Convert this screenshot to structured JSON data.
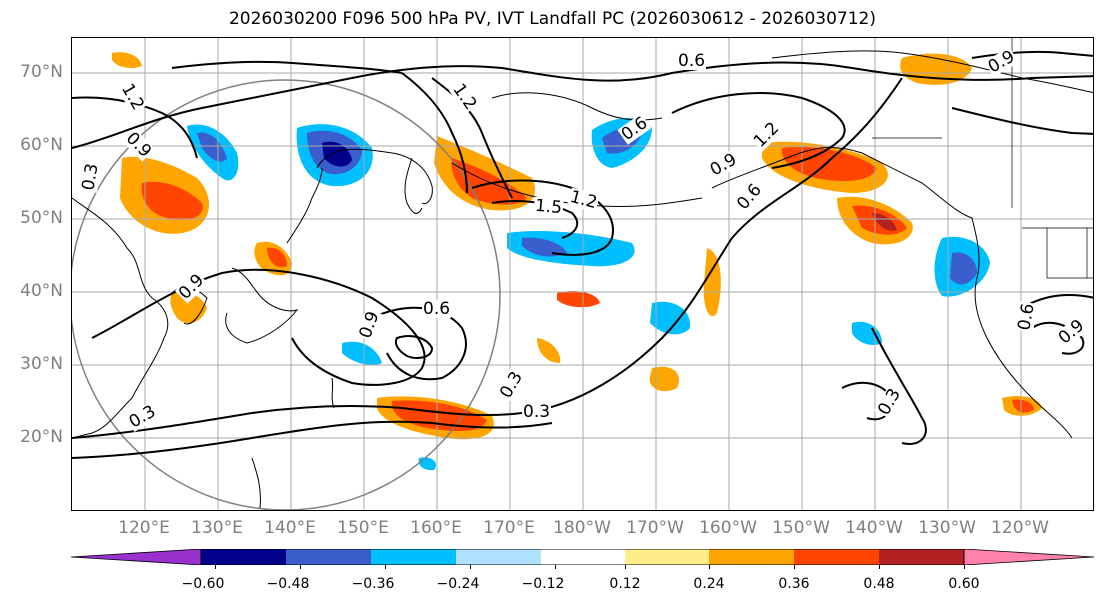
{
  "title": "2026030200 F096 500 hPa PV, IVT Landfall PC (2026030612 - 2026030712)",
  "lat_labels": [
    "70°N",
    "60°N",
    "50°N",
    "40°N",
    "30°N",
    "20°N"
  ],
  "lon_labels": [
    "120°E",
    "130°E",
    "140°E",
    "150°E",
    "160°E",
    "170°E",
    "180°W",
    "170°W",
    "160°W",
    "150°W",
    "140°W",
    "130°W",
    "120°W"
  ],
  "contour_labels": [
    "0.6",
    "0.6",
    "0.6",
    "0.6",
    "0.3",
    "0.3",
    "0.3",
    "0.3",
    "0.3",
    "0.9",
    "0.9",
    "0.9",
    "0.9",
    "0.9",
    "1.2",
    "1.2",
    "1.2",
    "1.2",
    "1.5",
    "0.6",
    "0.9"
  ],
  "colorbar": {
    "ticks": [
      "−0.60",
      "−0.48",
      "−0.36",
      "−0.24",
      "−0.12",
      "0.12",
      "0.24",
      "0.36",
      "0.48",
      "0.60"
    ],
    "colors": [
      "#9932cc",
      "#00008b",
      "#3a5fcd",
      "#00bfff",
      "#b0e2ff",
      "#ffffff",
      "#ffec8b",
      "#ffa500",
      "#ff4500",
      "#b22222",
      "#ff82ab"
    ]
  },
  "colors": {
    "land_outline": "#000000",
    "grid": "#a9a9a9",
    "contour": "#000000"
  }
}
